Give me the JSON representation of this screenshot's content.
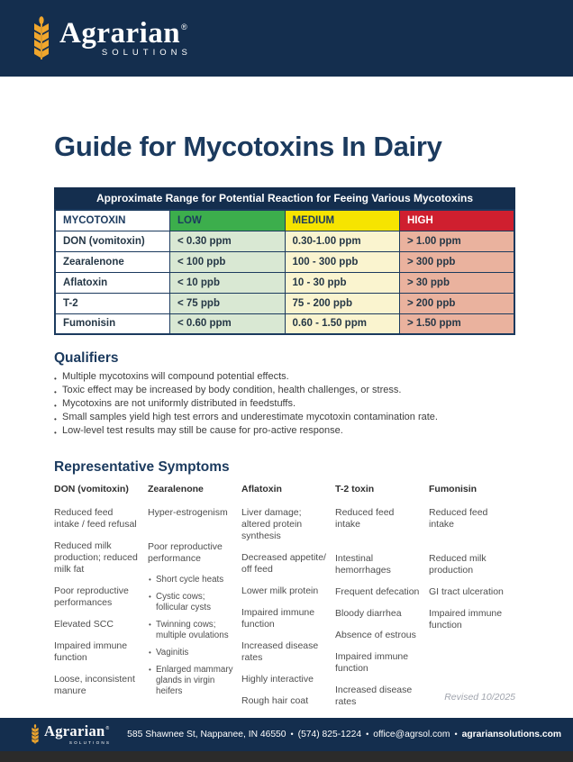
{
  "brand": {
    "name": "Agrarian",
    "registered": "®",
    "subtitle": "SOLUTIONS"
  },
  "page_title": "Guide for Mycotoxins In Dairy",
  "table": {
    "caption": "Approximate Range for Potential Reaction for Feeing Various Mycotoxins",
    "columns": [
      "MYCOTOXIN",
      "LOW",
      "MEDIUM",
      "HIGH"
    ],
    "rows": [
      {
        "mycotoxin": "DON (vomitoxin)",
        "low": "< 0.30 ppm",
        "medium": "0.30-1.00 ppm",
        "high": "> 1.00 ppm"
      },
      {
        "mycotoxin": "Zearalenone",
        "low": "< 100 ppb",
        "medium": "100 - 300 ppb",
        "high": "> 300 ppb"
      },
      {
        "mycotoxin": "Aflatoxin",
        "low": "< 10 ppb",
        "medium": "10 - 30 ppb",
        "high": "> 30 ppb"
      },
      {
        "mycotoxin": "T-2",
        "low": "< 75 ppb",
        "medium": "75 - 200 ppb",
        "high": "> 200 ppb"
      },
      {
        "mycotoxin": "Fumonisin",
        "low": "< 0.60 ppm",
        "medium": "0.60 - 1.50 ppm",
        "high": "> 1.50 ppm"
      }
    ]
  },
  "qualifiers": {
    "heading": "Qualifiers",
    "items": [
      "Multiple mycotoxins will compound potential effects.",
      "Toxic effect may be increased by body condition, health challenges, or stress.",
      "Mycotoxins are not uniformly distributed in feedstuffs.",
      "Small samples yield high test errors and underestimate mycotoxin contamination rate.",
      "Low-level test results may still be cause for pro-active response."
    ]
  },
  "symptoms": {
    "heading": "Representative Symptoms",
    "columns": [
      {
        "title": "DON (vomitoxin)",
        "entries": [
          {
            "text": "Reduced feed intake / feed refusal"
          },
          {
            "text": "Reduced milk production; reduced milk fat"
          },
          {
            "text": "Poor reproductive performances"
          },
          {
            "text": "Elevated SCC"
          },
          {
            "text": "Impaired immune function"
          },
          {
            "text": "Loose, inconsistent manure"
          }
        ]
      },
      {
        "title": "Zearalenone",
        "entries": [
          {
            "text": "Hyper-estrogenism",
            "gap": true
          },
          {
            "text": "Poor reproductive performance"
          },
          {
            "text": "Short cycle heats",
            "bullet": true
          },
          {
            "text": "Cystic cows; follicular cysts",
            "bullet": true
          },
          {
            "text": "Twinning cows; multiple ovulations",
            "bullet": true
          },
          {
            "text": "Vaginitis",
            "bullet": true
          },
          {
            "text": "Enlarged mammary glands in virgin heifers",
            "bullet": true
          }
        ]
      },
      {
        "title": "Aflatoxin",
        "entries": [
          {
            "text": "Liver damage; altered protein synthesis"
          },
          {
            "text": "Decreased appetite/ off feed"
          },
          {
            "text": "Lower milk protein"
          },
          {
            "text": "Impaired immune function"
          },
          {
            "text": "Increased disease rates"
          },
          {
            "text": "Highly interactive"
          },
          {
            "text": "Rough hair coat"
          }
        ]
      },
      {
        "title": "T-2 toxin",
        "entries": [
          {
            "text": "Reduced feed intake",
            "gap": true
          },
          {
            "text": "Intestinal hemorrhages"
          },
          {
            "text": "Frequent defecation"
          },
          {
            "text": "Bloody diarrhea"
          },
          {
            "text": "Absence of estrous"
          },
          {
            "text": "Impaired immune function"
          },
          {
            "text": "Increased disease rates"
          }
        ]
      },
      {
        "title": "Fumonisin",
        "entries": [
          {
            "text": "Reduced feed intake",
            "gap": true
          },
          {
            "text": "Reduced milk production"
          },
          {
            "text": "GI tract ulceration"
          },
          {
            "text": "Impaired immune function"
          }
        ]
      }
    ]
  },
  "revised": "Revised 10/2025",
  "footer": {
    "address": "585 Shawnee St, Nappanee, IN 46550",
    "phone": "(574) 825-1224",
    "email": "office@agrsol.com",
    "website": "agrariansolutions.com",
    "separator": "•"
  },
  "colors": {
    "navy": "#142e4e",
    "heading-navy": "#1b3a5e",
    "gold": "#f0a62c",
    "green": "#3cae4c",
    "yellow": "#f6e400",
    "red": "#cf1f2f",
    "green-light": "#d9e8d3",
    "yellow-light": "#faf4cf",
    "red-light": "#eab29e",
    "strip": "#2b2b2b"
  }
}
